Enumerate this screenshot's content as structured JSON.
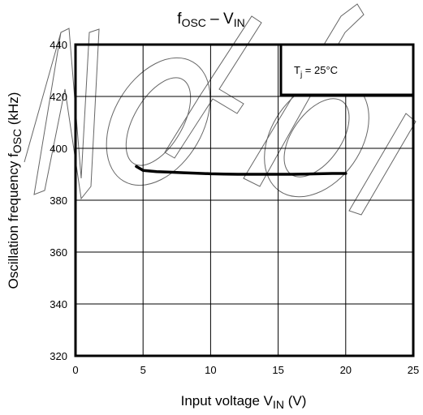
{
  "chart_data": {
    "type": "line",
    "title": {
      "main": "f",
      "sub1": "OSC",
      "sep": " – V",
      "sub2": "IN"
    },
    "xlabel": {
      "main": "Input voltage   V",
      "sub": "IN",
      "unit": "   (V)"
    },
    "ylabel": {
      "main": "Oscillation frequency   f",
      "sub": "OSC",
      "unit": "   (kHz)"
    },
    "xlim": [
      0,
      25
    ],
    "ylim": [
      320,
      440
    ],
    "x_ticks": [
      0,
      5,
      10,
      15,
      20,
      25
    ],
    "y_ticks": [
      320,
      340,
      360,
      380,
      400,
      420,
      440
    ],
    "grid": true,
    "annotation": {
      "main": "T",
      "sub": "j",
      "rest": " = 25°C"
    },
    "series": [
      {
        "x": [
          4.5,
          5,
          6,
          7,
          8,
          9,
          10,
          11,
          12,
          13,
          14,
          15,
          16,
          17,
          18,
          19,
          20
        ],
        "y": [
          393,
          391.5,
          391,
          390.8,
          390.6,
          390.4,
          390.2,
          390.1,
          390,
          390,
          390,
          390,
          390,
          390.1,
          390.2,
          390.3,
          390.3
        ]
      }
    ]
  }
}
